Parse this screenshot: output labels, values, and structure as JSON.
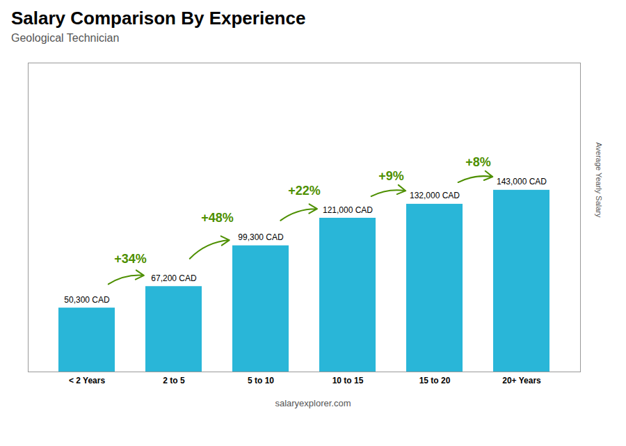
{
  "chart_data": {
    "type": "bar",
    "title": "Salary Comparison By Experience",
    "subtitle": "Geological Technician",
    "ylabel": "Average Yearly Salary",
    "categories": [
      "< 2 Years",
      "2 to 5",
      "5 to 10",
      "10 to 15",
      "15 to 20",
      "20+ Years"
    ],
    "values": [
      50300,
      67200,
      99300,
      121000,
      132000,
      143000
    ],
    "value_labels": [
      "50,300 CAD",
      "67,200 CAD",
      "99,300 CAD",
      "121,000 CAD",
      "132,000 CAD",
      "143,000 CAD"
    ],
    "data_labels": true,
    "color": "#29b6d8",
    "ylim": [
      0,
      243100
    ],
    "tick_labels": "x",
    "grid": false,
    "annotations": [
      {
        "text": "+34%",
        "between": [
          "< 2 Years",
          "2 to 5"
        ]
      },
      {
        "text": "+48%",
        "between": [
          "2 to 5",
          "5 to 10"
        ]
      },
      {
        "text": "+22%",
        "between": [
          "5 to 10",
          "10 to 15"
        ]
      },
      {
        "text": "+9%",
        "between": [
          "10 to 15",
          "15 to 20"
        ]
      },
      {
        "text": "+8%",
        "between": [
          "15 to 20",
          "20+ Years"
        ]
      },
      {
        "text": "salaryexplorer.com"
      }
    ]
  }
}
